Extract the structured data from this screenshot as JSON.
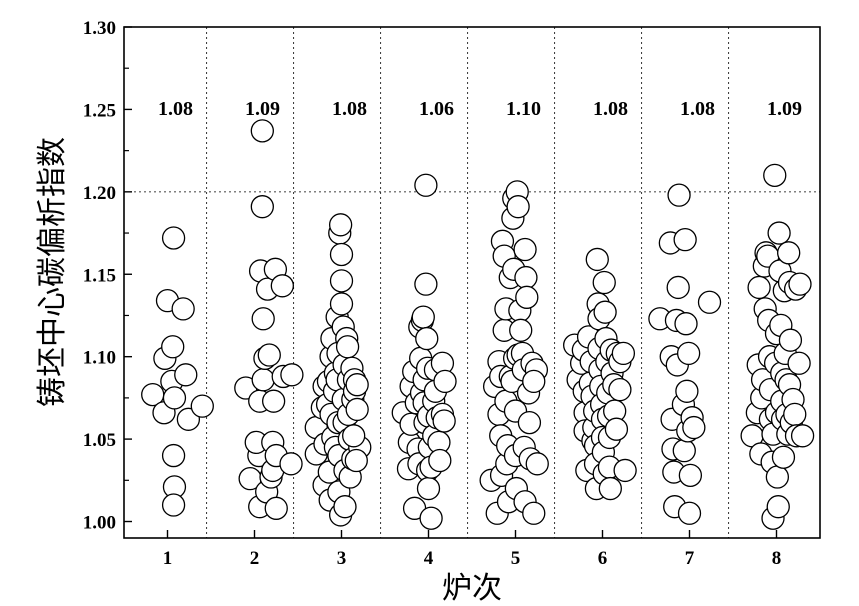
{
  "chart_data": {
    "type": "scatter",
    "title": "",
    "xlabel": "炉次",
    "ylabel": "铸坯中心碳偏析指数",
    "x_ticks": [
      "1",
      "2",
      "3",
      "4",
      "5",
      "6",
      "7",
      "8"
    ],
    "y_ticks": [
      "1.00",
      "1.05",
      "1.10",
      "1.15",
      "1.20",
      "1.25",
      "1.30"
    ],
    "ylim": [
      0.99,
      1.3
    ],
    "xlim": [
      0.5,
      8.5
    ],
    "reference_line": 1.2,
    "annotations": [
      {
        "x": 1,
        "y": 1.25,
        "text": "1.08"
      },
      {
        "x": 2,
        "y": 1.25,
        "text": "1.09"
      },
      {
        "x": 3,
        "y": 1.25,
        "text": "1.08"
      },
      {
        "x": 4,
        "y": 1.25,
        "text": "1.06"
      },
      {
        "x": 5,
        "y": 1.25,
        "text": "1.10"
      },
      {
        "x": 6,
        "y": 1.25,
        "text": "1.08"
      },
      {
        "x": 7,
        "y": 1.25,
        "text": "1.08"
      },
      {
        "x": 8,
        "y": 1.25,
        "text": "1.09"
      }
    ],
    "series": [
      {
        "name": "1",
        "points": [
          [
            0.83,
            1.077
          ],
          [
            0.96,
            1.066
          ],
          [
            0.97,
            1.099
          ],
          [
            1.0,
            1.134
          ],
          [
            1.07,
            1.172
          ],
          [
            1.06,
            1.106
          ],
          [
            1.05,
            1.085
          ],
          [
            1.08,
            1.075
          ],
          [
            1.18,
            1.129
          ],
          [
            1.21,
            1.089
          ],
          [
            1.24,
            1.062
          ],
          [
            1.4,
            1.07
          ],
          [
            1.07,
            1.04
          ],
          [
            1.08,
            1.021
          ],
          [
            1.07,
            1.01
          ]
        ]
      },
      {
        "name": "2",
        "points": [
          [
            1.9,
            1.081
          ],
          [
            1.95,
            1.026
          ],
          [
            2.05,
            1.04
          ],
          [
            2.07,
            1.152
          ],
          [
            2.02,
            1.048
          ],
          [
            2.06,
            1.073
          ],
          [
            2.1,
            1.086
          ],
          [
            2.06,
            1.009
          ],
          [
            2.12,
            1.099
          ],
          [
            2.09,
            1.237
          ],
          [
            2.09,
            1.191
          ],
          [
            2.1,
            1.123
          ],
          [
            2.15,
            1.141
          ],
          [
            2.17,
            1.101
          ],
          [
            2.14,
            1.018
          ],
          [
            2.19,
            1.027
          ],
          [
            2.21,
            1.031
          ],
          [
            2.24,
            1.153
          ],
          [
            2.22,
            1.073
          ],
          [
            2.21,
            1.048
          ],
          [
            2.25,
            1.04
          ],
          [
            2.25,
            1.008
          ],
          [
            2.32,
            1.143
          ],
          [
            2.33,
            1.088
          ],
          [
            2.42,
            1.035
          ],
          [
            2.43,
            1.089
          ]
        ]
      },
      {
        "name": "3",
        "points": [
          [
            2.71,
            1.057
          ],
          [
            2.71,
            1.041
          ],
          [
            2.8,
            1.082
          ],
          [
            2.78,
            1.069
          ],
          [
            2.81,
            1.047
          ],
          [
            2.8,
            1.022
          ],
          [
            2.84,
            1.071
          ],
          [
            2.85,
            1.085
          ],
          [
            2.88,
            1.1
          ],
          [
            2.89,
            1.111
          ],
          [
            2.88,
            1.065
          ],
          [
            2.86,
            1.03
          ],
          [
            2.87,
            1.013
          ],
          [
            2.9,
            1.051
          ],
          [
            2.92,
            1.079
          ],
          [
            2.93,
            1.09
          ],
          [
            2.93,
            1.045
          ],
          [
            2.95,
            1.124
          ],
          [
            2.96,
            1.102
          ],
          [
            2.95,
            1.086
          ],
          [
            2.96,
            1.06
          ],
          [
            2.97,
            1.04
          ],
          [
            2.97,
            1.018
          ],
          [
            2.99,
            1.004
          ],
          [
            2.98,
            1.175
          ],
          [
            2.99,
            1.18
          ],
          [
            3.0,
            1.162
          ],
          [
            3.0,
            1.146
          ],
          [
            3.0,
            1.132
          ],
          [
            3.02,
            1.118
          ],
          [
            3.03,
            1.095
          ],
          [
            3.02,
            1.074
          ],
          [
            3.03,
            1.06
          ],
          [
            3.04,
            1.031
          ],
          [
            3.04,
            1.009
          ],
          [
            3.06,
            1.111
          ],
          [
            3.07,
            1.106
          ],
          [
            3.08,
            1.086
          ],
          [
            3.08,
            1.065
          ],
          [
            3.09,
            1.05
          ],
          [
            3.1,
            1.027
          ],
          [
            3.12,
            1.093
          ],
          [
            3.13,
            1.074
          ],
          [
            3.13,
            1.038
          ],
          [
            3.15,
            1.086
          ],
          [
            3.15,
            1.079
          ],
          [
            3.18,
            1.083
          ],
          [
            3.18,
            1.068
          ],
          [
            3.21,
            1.045
          ],
          [
            3.17,
            1.037
          ],
          [
            3.14,
            1.052
          ]
        ]
      },
      {
        "name": "4",
        "points": [
          [
            3.71,
            1.066
          ],
          [
            3.77,
            1.032
          ],
          [
            3.78,
            1.048
          ],
          [
            3.8,
            1.082
          ],
          [
            3.8,
            1.059
          ],
          [
            3.83,
            1.091
          ],
          [
            3.84,
            1.008
          ],
          [
            3.86,
            1.072
          ],
          [
            3.88,
            1.044
          ],
          [
            3.89,
            1.035
          ],
          [
            3.9,
            1.118
          ],
          [
            3.91,
            1.099
          ],
          [
            3.92,
            1.078
          ],
          [
            3.93,
            1.122
          ],
          [
            3.94,
            1.124
          ],
          [
            3.95,
            1.086
          ],
          [
            3.95,
            1.072
          ],
          [
            3.96,
            1.06
          ],
          [
            3.97,
            1.204
          ],
          [
            3.97,
            1.144
          ],
          [
            3.98,
            1.111
          ],
          [
            3.99,
            1.093
          ],
          [
            3.99,
            1.031
          ],
          [
            4.0,
            1.02
          ],
          [
            4.0,
            1.064
          ],
          [
            4.01,
            1.045
          ],
          [
            4.03,
            1.033
          ],
          [
            4.03,
            1.002
          ],
          [
            4.06,
            1.073
          ],
          [
            4.06,
            1.052
          ],
          [
            4.08,
            1.092
          ],
          [
            4.08,
            1.079
          ],
          [
            4.1,
            1.063
          ],
          [
            4.12,
            1.048
          ],
          [
            4.13,
            1.037
          ],
          [
            4.16,
            1.096
          ],
          [
            4.16,
            1.065
          ],
          [
            4.19,
            1.085
          ],
          [
            4.18,
            1.061
          ]
        ]
      },
      {
        "name": "5",
        "points": [
          [
            4.72,
            1.025
          ],
          [
            4.76,
            1.082
          ],
          [
            4.79,
            1.005
          ],
          [
            4.81,
            1.097
          ],
          [
            4.81,
            1.065
          ],
          [
            4.83,
            1.088
          ],
          [
            4.83,
            1.052
          ],
          [
            4.84,
            1.028
          ],
          [
            4.85,
            1.17
          ],
          [
            4.87,
            1.161
          ],
          [
            4.87,
            1.116
          ],
          [
            4.89,
            1.129
          ],
          [
            4.89,
            1.073
          ],
          [
            4.9,
            1.035
          ],
          [
            4.91,
            1.046
          ],
          [
            4.92,
            1.012
          ],
          [
            4.94,
            1.148
          ],
          [
            4.94,
            1.088
          ],
          [
            4.96,
            1.085
          ],
          [
            4.97,
            1.184
          ],
          [
            4.98,
            1.196
          ],
          [
            4.98,
            1.153
          ],
          [
            4.99,
            1.099
          ],
          [
            5.0,
            1.067
          ],
          [
            5.0,
            1.04
          ],
          [
            5.01,
            1.02
          ],
          [
            5.02,
            1.2
          ],
          [
            5.03,
            1.191
          ],
          [
            5.03,
            1.101
          ],
          [
            5.05,
            1.128
          ],
          [
            5.06,
            1.116
          ],
          [
            5.08,
            1.102
          ],
          [
            5.09,
            1.092
          ],
          [
            5.1,
            1.045
          ],
          [
            5.11,
            1.012
          ],
          [
            5.11,
            1.165
          ],
          [
            5.12,
            1.148
          ],
          [
            5.13,
            1.136
          ],
          [
            5.15,
            1.078
          ],
          [
            5.16,
            1.06
          ],
          [
            5.17,
            1.038
          ],
          [
            5.19,
            1.096
          ],
          [
            5.21,
            1.005
          ],
          [
            5.24,
            1.092
          ],
          [
            5.25,
            1.035
          ],
          [
            5.21,
            1.085
          ]
        ]
      },
      {
        "name": "6",
        "points": [
          [
            5.68,
            1.107
          ],
          [
            5.72,
            1.086
          ],
          [
            5.76,
            1.096
          ],
          [
            5.78,
            1.104
          ],
          [
            5.79,
            1.079
          ],
          [
            5.8,
            1.066
          ],
          [
            5.8,
            1.055
          ],
          [
            5.82,
            1.031
          ],
          [
            5.84,
            1.112
          ],
          [
            5.86,
            1.084
          ],
          [
            5.87,
            1.097
          ],
          [
            5.88,
            1.076
          ],
          [
            5.89,
            1.049
          ],
          [
            5.9,
            1.057
          ],
          [
            5.91,
            1.067
          ],
          [
            5.92,
            1.046
          ],
          [
            5.92,
            1.035
          ],
          [
            5.93,
            1.02
          ],
          [
            5.94,
            1.159
          ],
          [
            5.95,
            1.132
          ],
          [
            5.96,
            1.123
          ],
          [
            5.96,
            1.105
          ],
          [
            5.97,
            1.092
          ],
          [
            5.98,
            1.082
          ],
          [
            5.99,
            1.071
          ],
          [
            6.0,
            1.062
          ],
          [
            6.0,
            1.051
          ],
          [
            6.01,
            1.042
          ],
          [
            6.02,
            1.029
          ],
          [
            6.02,
            1.145
          ],
          [
            6.03,
            1.127
          ],
          [
            6.04,
            1.111
          ],
          [
            6.05,
            1.097
          ],
          [
            6.06,
            1.078
          ],
          [
            6.07,
            1.064
          ],
          [
            6.08,
            1.051
          ],
          [
            6.08,
            1.033
          ],
          [
            6.09,
            1.02
          ],
          [
            6.1,
            1.104
          ],
          [
            6.11,
            1.09
          ],
          [
            6.13,
            1.083
          ],
          [
            6.14,
            1.067
          ],
          [
            6.16,
            1.056
          ],
          [
            6.17,
            1.102
          ],
          [
            6.2,
            1.097
          ],
          [
            6.2,
            1.08
          ],
          [
            6.24,
            1.102
          ],
          [
            6.26,
            1.031
          ]
        ]
      },
      {
        "name": "7",
        "points": [
          [
            6.66,
            1.123
          ],
          [
            6.78,
            1.169
          ],
          [
            6.79,
            1.1
          ],
          [
            6.8,
            1.062
          ],
          [
            6.81,
            1.044
          ],
          [
            6.82,
            1.03
          ],
          [
            6.83,
            1.009
          ],
          [
            6.85,
            1.122
          ],
          [
            6.86,
            1.095
          ],
          [
            6.87,
            1.142
          ],
          [
            6.88,
            1.198
          ],
          [
            6.93,
            1.071
          ],
          [
            6.94,
            1.043
          ],
          [
            6.95,
            1.171
          ],
          [
            6.96,
            1.12
          ],
          [
            6.97,
            1.079
          ],
          [
            6.98,
            1.055
          ],
          [
            6.99,
            1.102
          ],
          [
            7.0,
            1.005
          ],
          [
            7.01,
            1.028
          ],
          [
            7.03,
            1.063
          ],
          [
            7.05,
            1.057
          ],
          [
            7.23,
            1.133
          ]
        ]
      },
      {
        "name": "8",
        "points": [
          [
            7.72,
            1.052
          ],
          [
            7.78,
            1.066
          ],
          [
            7.79,
            1.095
          ],
          [
            7.8,
            1.142
          ],
          [
            7.82,
            1.041
          ],
          [
            7.83,
            1.075
          ],
          [
            7.84,
            1.086
          ],
          [
            7.86,
            1.155
          ],
          [
            7.87,
            1.129
          ],
          [
            7.88,
            1.163
          ],
          [
            7.9,
            1.161
          ],
          [
            7.91,
            1.122
          ],
          [
            7.92,
            1.1
          ],
          [
            7.93,
            1.08
          ],
          [
            7.93,
            1.062
          ],
          [
            7.95,
            1.036
          ],
          [
            7.96,
            1.053
          ],
          [
            7.96,
            1.002
          ],
          [
            7.98,
            1.21
          ],
          [
            7.99,
            1.096
          ],
          [
            8.0,
            1.114
          ],
          [
            8.0,
            1.066
          ],
          [
            8.01,
            1.027
          ],
          [
            8.02,
            1.009
          ],
          [
            8.03,
            1.175
          ],
          [
            8.04,
            1.152
          ],
          [
            8.05,
            1.119
          ],
          [
            8.06,
            1.09
          ],
          [
            8.06,
            1.073
          ],
          [
            8.07,
            1.062
          ],
          [
            8.08,
            1.039
          ],
          [
            8.09,
            1.14
          ],
          [
            8.1,
            1.102
          ],
          [
            8.11,
            1.086
          ],
          [
            8.12,
            1.065
          ],
          [
            8.13,
            1.053
          ],
          [
            8.14,
            1.163
          ],
          [
            8.15,
            1.145
          ],
          [
            8.15,
            1.083
          ],
          [
            8.17,
            1.06
          ],
          [
            8.19,
            1.074
          ],
          [
            8.21,
            1.065
          ],
          [
            8.22,
            1.141
          ],
          [
            8.23,
            1.052
          ],
          [
            8.26,
            1.096
          ],
          [
            8.27,
            1.144
          ],
          [
            8.3,
            1.052
          ],
          [
            8.16,
            1.11
          ]
        ]
      }
    ]
  }
}
